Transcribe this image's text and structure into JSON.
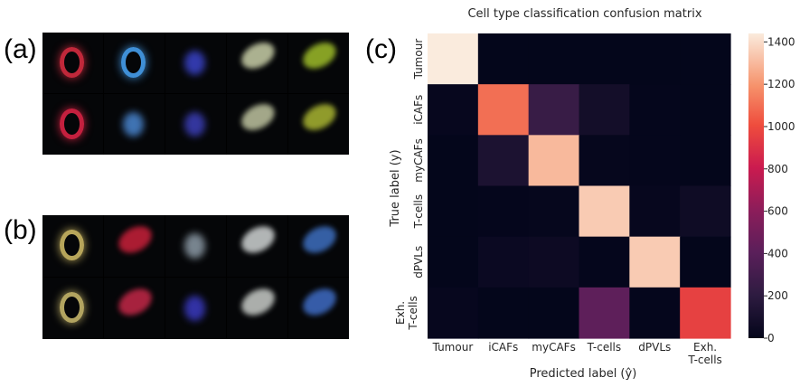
{
  "panels": {
    "a": {
      "label": "(a)"
    },
    "b": {
      "label": "(b)"
    },
    "c": {
      "label": "(c)"
    }
  },
  "micrographs": {
    "a": [
      {
        "color": "#c0283a",
        "shape": "ring"
      },
      {
        "color": "#3f8fd6",
        "shape": "ring"
      },
      {
        "color": "#3a43c8",
        "shape": "blob"
      },
      {
        "color": "#c9cfa8",
        "shape": "streak"
      },
      {
        "color": "#9ebd2a",
        "shape": "streak"
      },
      {
        "color": "#c4203e",
        "shape": "ring"
      },
      {
        "color": "#4a86d0",
        "shape": "blob"
      },
      {
        "color": "#3c3fb8",
        "shape": "blob"
      },
      {
        "color": "#bfc4a0",
        "shape": "streak"
      },
      {
        "color": "#a9b532",
        "shape": "streak"
      }
    ],
    "b": [
      {
        "color": "#b7a55a",
        "shape": "ring"
      },
      {
        "color": "#c8203a",
        "shape": "streak"
      },
      {
        "color": "#8c9aa6",
        "shape": "blob"
      },
      {
        "color": "#d0d4d4",
        "shape": "streak"
      },
      {
        "color": "#3e6fc0",
        "shape": "streak"
      },
      {
        "color": "#b2a460",
        "shape": "ring"
      },
      {
        "color": "#c42848",
        "shape": "streak"
      },
      {
        "color": "#3a3ac0",
        "shape": "blob"
      },
      {
        "color": "#c8ccc8",
        "shape": "streak"
      },
      {
        "color": "#3f6cc4",
        "shape": "streak"
      }
    ]
  },
  "chart_data": {
    "type": "heatmap",
    "title": "Cell type classification confusion matrix",
    "xlabel": "Predicted label (ŷ)",
    "ylabel": "True label (y)",
    "x_categories": [
      "Tumour",
      "iCAFs",
      "myCAFs",
      "T-cells",
      "dPVLs",
      "Exh. T-cells"
    ],
    "y_categories": [
      "Tumour",
      "iCAFs",
      "myCAFs",
      "T-cells",
      "dPVLs",
      "Exh. T-cells"
    ],
    "values": [
      [
        1440,
        5,
        5,
        5,
        5,
        5
      ],
      [
        20,
        1100,
        250,
        80,
        10,
        5
      ],
      [
        5,
        120,
        1300,
        15,
        10,
        5
      ],
      [
        5,
        10,
        15,
        1350,
        20,
        60
      ],
      [
        5,
        40,
        50,
        10,
        1350,
        5
      ],
      [
        20,
        5,
        5,
        420,
        10,
        960
      ]
    ],
    "colorbar": {
      "min": 0,
      "max": 1440,
      "ticks": [
        0,
        200,
        400,
        600,
        800,
        1000,
        1200,
        1400
      ]
    },
    "colormap": "rocket"
  }
}
